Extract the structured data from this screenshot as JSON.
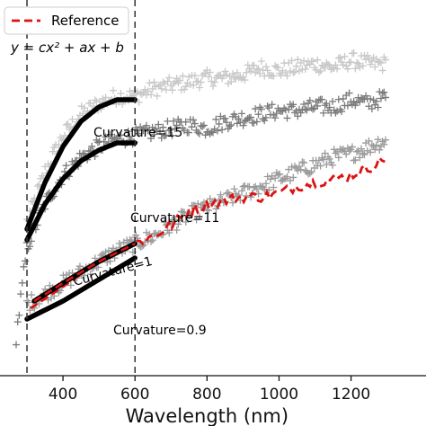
{
  "chart_data": {
    "type": "scatter",
    "xlabel": "Wavelength (nm)",
    "ylabel": "",
    "xlim": [
      250,
      1300
    ],
    "ylim": [
      0,
      1
    ],
    "x_ticks": [
      400,
      600,
      800,
      1000,
      1200
    ],
    "x_tick_labels": [
      "400",
      "600",
      "800",
      "1000",
      "1200"
    ],
    "grid": false,
    "legend_position": "top-left",
    "legend": [
      {
        "label": "Reference",
        "style": "dashed",
        "color": "#dd1111"
      }
    ],
    "equation": "y = cx² + ax + b",
    "vertical_lines": [
      300,
      600
    ],
    "colors": {
      "c15": "#c8c8c8",
      "c11": "#7a7a7a",
      "c1": "#9a9a9a",
      "reference": "#dd1111",
      "fit": "#000000"
    },
    "series": [
      {
        "key": "c15",
        "x": [
          300,
          350,
          400,
          450,
          500,
          550,
          600,
          650,
          700,
          750,
          800,
          850,
          900,
          950,
          1000,
          1050,
          1100,
          1150,
          1200,
          1250,
          1300
        ],
        "y": [
          0.42,
          0.56,
          0.66,
          0.72,
          0.75,
          0.77,
          0.77,
          0.79,
          0.8,
          0.81,
          0.82,
          0.82,
          0.83,
          0.85,
          0.84,
          0.85,
          0.86,
          0.85,
          0.87,
          0.86,
          0.86
        ]
      },
      {
        "key": "c11",
        "x": [
          270,
          300,
          350,
          400,
          450,
          500,
          550,
          600,
          650,
          700,
          750,
          800,
          850,
          900,
          950,
          1000,
          1050,
          1100,
          1150,
          1200,
          1250,
          1300
        ],
        "y": [
          0.1,
          0.35,
          0.47,
          0.55,
          0.6,
          0.63,
          0.65,
          0.66,
          0.67,
          0.68,
          0.69,
          0.68,
          0.7,
          0.71,
          0.72,
          0.73,
          0.73,
          0.74,
          0.74,
          0.76,
          0.75,
          0.77
        ]
      },
      {
        "key": "c1",
        "x": [
          300,
          350,
          400,
          450,
          500,
          550,
          600,
          650,
          700,
          750,
          800,
          850,
          900,
          950,
          1000,
          1050,
          1100,
          1150,
          1200,
          1250,
          1300
        ],
        "y": [
          0.19,
          0.22,
          0.25,
          0.28,
          0.31,
          0.34,
          0.36,
          0.38,
          0.41,
          0.44,
          0.46,
          0.48,
          0.5,
          0.52,
          0.54,
          0.56,
          0.58,
          0.6,
          0.61,
          0.63,
          0.65
        ]
      }
    ],
    "reference": {
      "x": [
        310,
        400,
        500,
        600,
        650,
        700,
        750,
        800,
        850,
        900,
        950,
        1000,
        1050,
        1100,
        1150,
        1200,
        1250,
        1300
      ],
      "y": [
        0.18,
        0.24,
        0.31,
        0.36,
        0.38,
        0.41,
        0.45,
        0.47,
        0.48,
        0.49,
        0.49,
        0.5,
        0.52,
        0.53,
        0.54,
        0.55,
        0.57,
        0.6
      ]
    },
    "fits": [
      {
        "label": "Curvature=15",
        "x": [
          300,
          350,
          400,
          450,
          500,
          550,
          600
        ],
        "y": [
          0.4,
          0.53,
          0.63,
          0.7,
          0.74,
          0.76,
          0.76
        ]
      },
      {
        "label": "Curvature=11",
        "x": [
          300,
          350,
          400,
          450,
          500,
          550,
          600
        ],
        "y": [
          0.37,
          0.47,
          0.54,
          0.59,
          0.62,
          0.64,
          0.64
        ]
      },
      {
        "label": "Curvature=1",
        "x": [
          320,
          400,
          500,
          600
        ],
        "y": [
          0.2,
          0.25,
          0.31,
          0.36
        ]
      },
      {
        "label": "Curvature=0.9",
        "x": [
          300,
          400,
          500,
          600
        ],
        "y": [
          0.15,
          0.2,
          0.26,
          0.32
        ]
      }
    ],
    "annotations": [
      "Curvature=15",
      "Curvature=11",
      "Curvature=1",
      "Curvature=0.9"
    ]
  }
}
